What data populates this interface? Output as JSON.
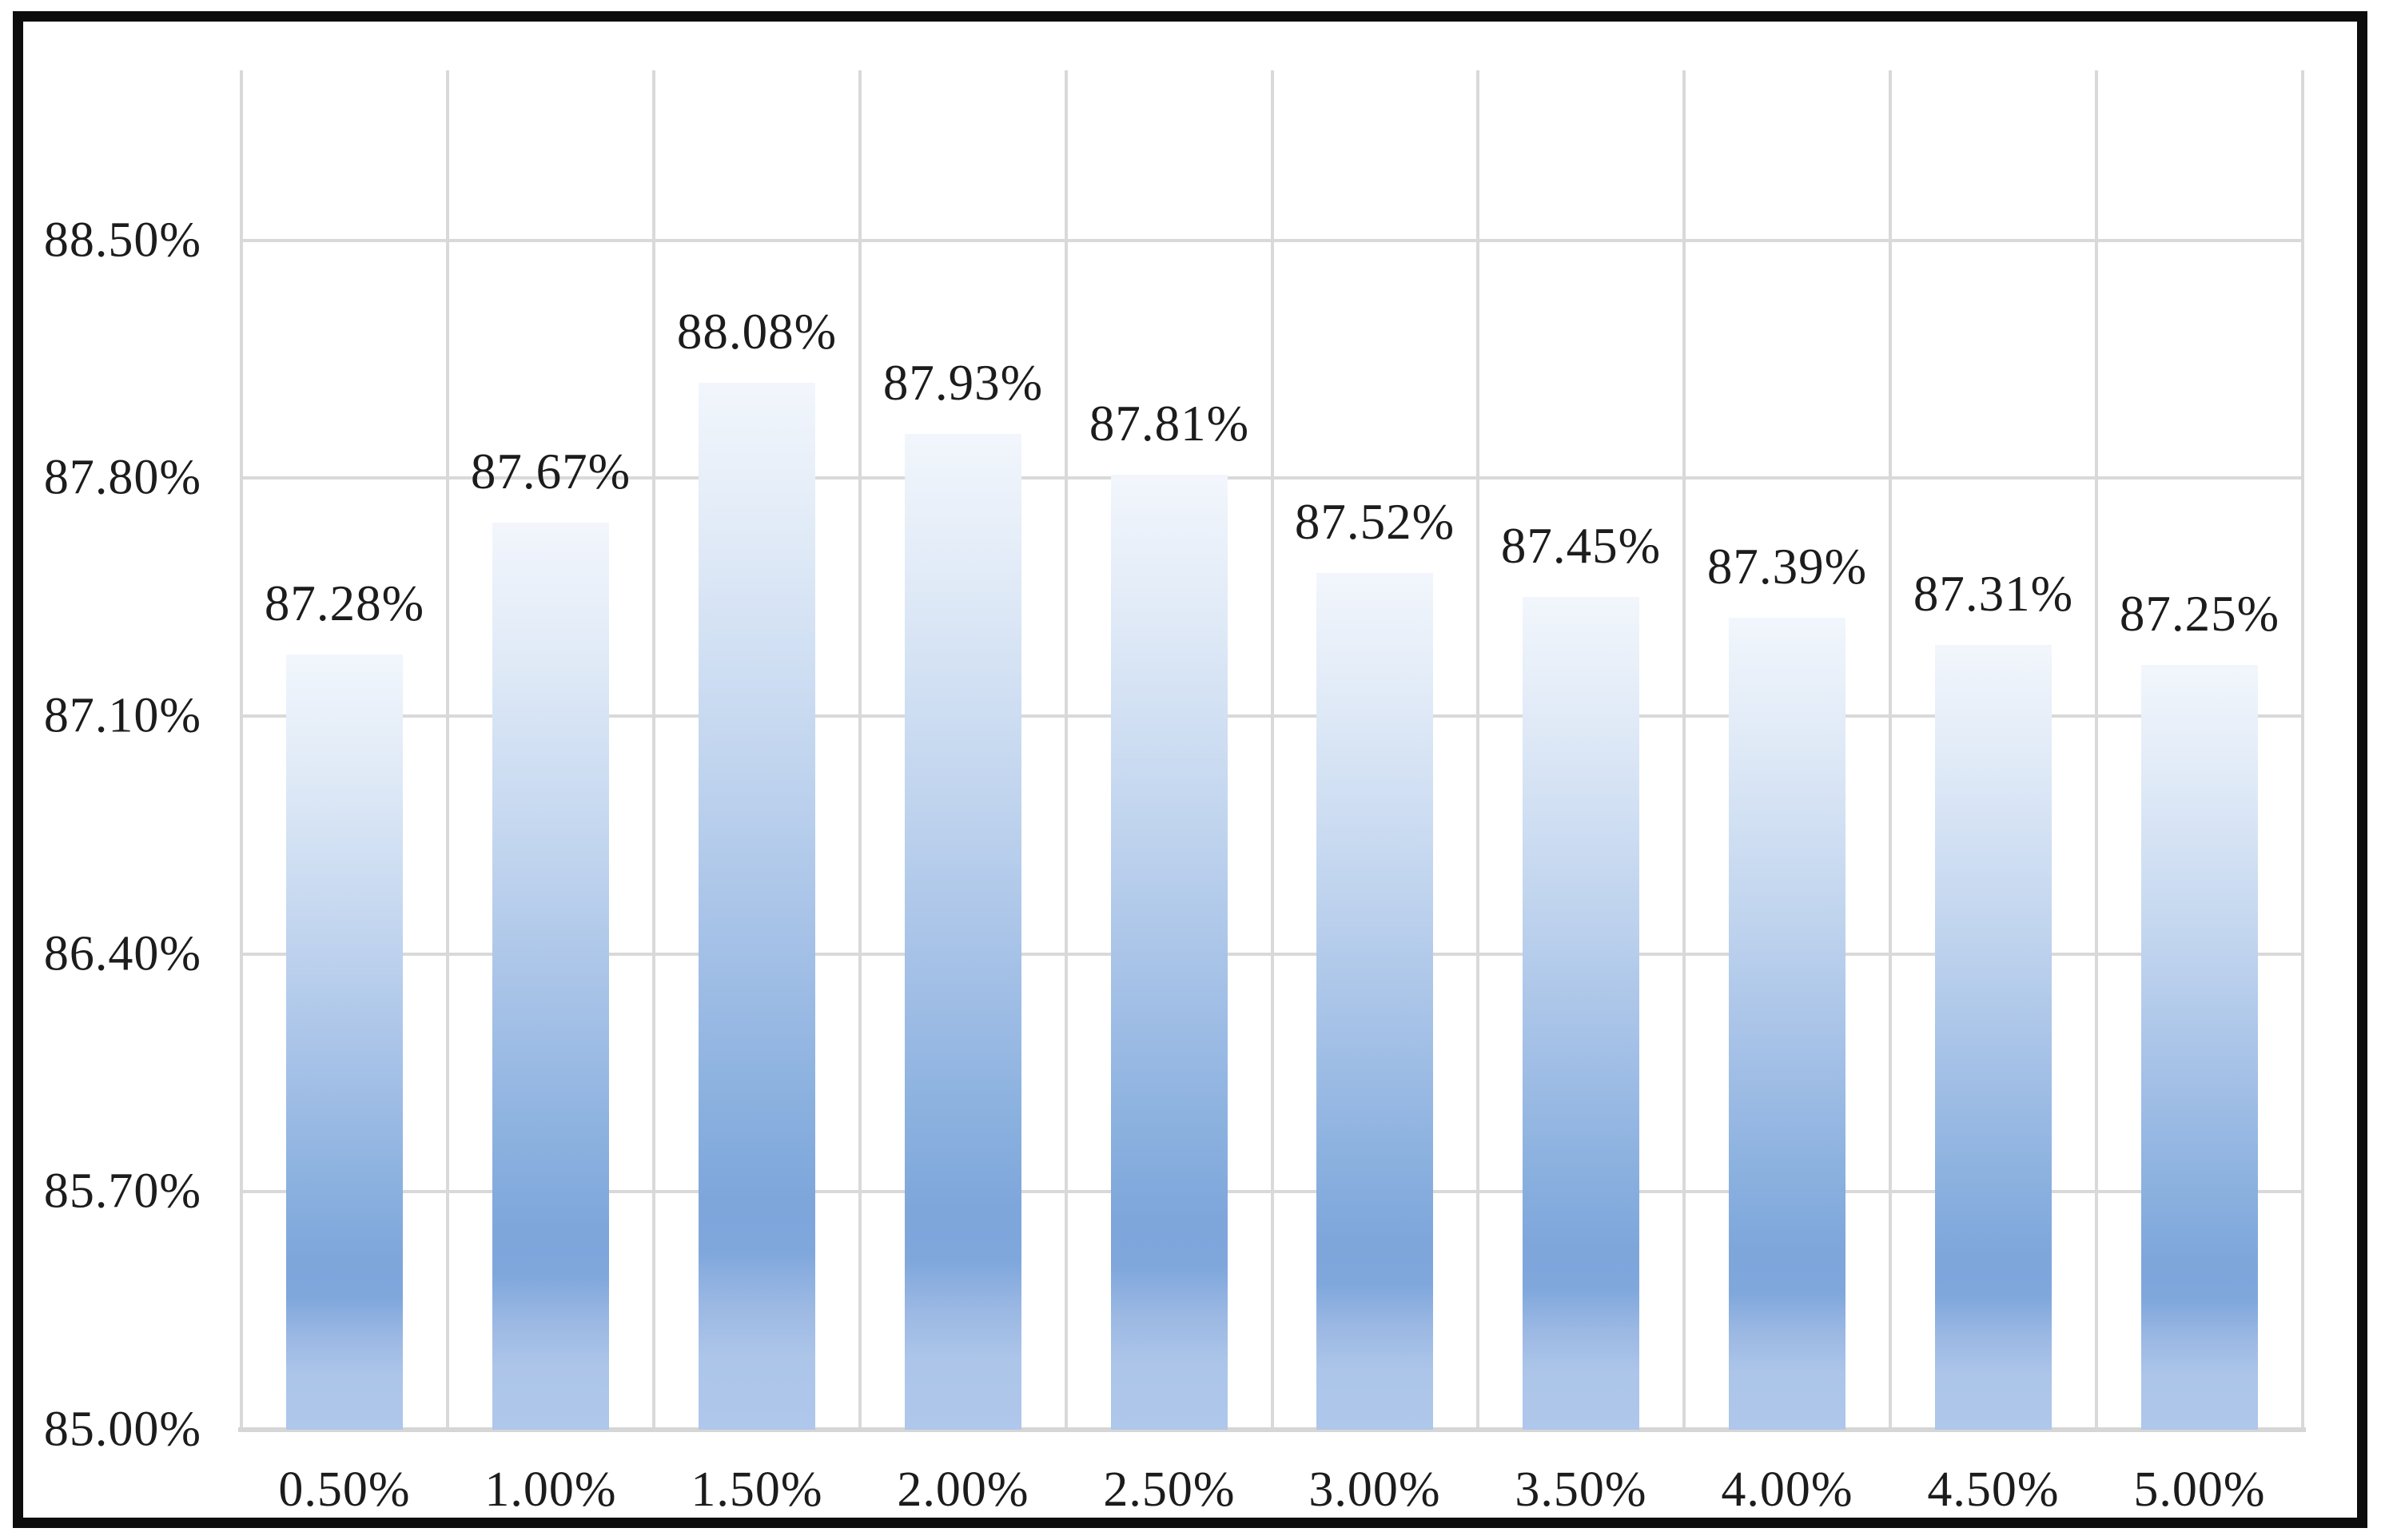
{
  "chart_data": {
    "type": "bar",
    "title": "",
    "xlabel": "",
    "ylabel": "",
    "legend": "none",
    "grid": "both",
    "categories": [
      "0.50%",
      "1.00%",
      "1.50%",
      "2.00%",
      "2.50%",
      "3.00%",
      "3.50%",
      "4.00%",
      "4.50%",
      "5.00%"
    ],
    "values": [
      87.28,
      87.67,
      88.08,
      87.93,
      87.81,
      87.52,
      87.45,
      87.39,
      87.31,
      87.25
    ],
    "data_labels": [
      "87.28%",
      "87.67%",
      "88.08%",
      "87.93%",
      "87.81%",
      "87.52%",
      "87.45%",
      "87.39%",
      "87.31%",
      "87.25%"
    ],
    "y_ticks": [
      {
        "label": "88.50%",
        "value": 88.5
      },
      {
        "label": "87.80%",
        "value": 87.8
      },
      {
        "label": "87.10%",
        "value": 87.1
      },
      {
        "label": "86.40%",
        "value": 86.4
      },
      {
        "label": "85.70%",
        "value": 85.7
      },
      {
        "label": "85.00%",
        "value": 85.0
      }
    ],
    "ylim": [
      85.0,
      89.0
    ],
    "y_major_unit": 0.7,
    "colors": {
      "bar_gradient_top": "#f2f6fc",
      "bar_gradient_dark": "#7fa7dc",
      "bar_gradient_bottom": "#aec7ea",
      "gridline": "#d9d9d9",
      "axis_line": "#d6d6d6",
      "frame_border": "#0d0d0d",
      "text": "#1c1c1c",
      "background": "#ffffff"
    }
  }
}
